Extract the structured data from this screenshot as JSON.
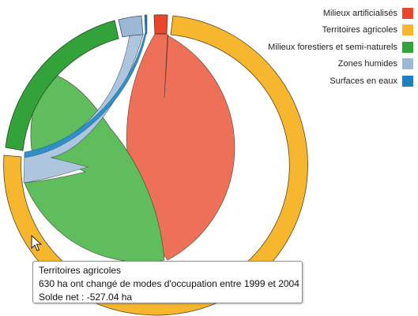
{
  "legend": {
    "items": [
      {
        "label": "Milieux artificialisés",
        "color": "#e8472b"
      },
      {
        "label": "Territoires agricoles",
        "color": "#f6b62e"
      },
      {
        "label": "Milieux forestiers et semi-naturels",
        "color": "#34a23a"
      },
      {
        "label": "Zones humides",
        "color": "#9cb8d4"
      },
      {
        "label": "Surfaces en eaux",
        "color": "#1f80c0"
      }
    ]
  },
  "chord": {
    "ribbon_colors": {
      "artificialises": "#ee7058",
      "agricoles_forest": "#5fbd5d",
      "humides": "#adc6dd",
      "eaux": "#2f8fc8"
    }
  },
  "tooltip": {
    "title": "Territoires agricoles",
    "line1": " 630 ha ont changé de modes d'occupation entre 1999 et 2004",
    "line2": "Solde net : -527.04 ha"
  }
}
